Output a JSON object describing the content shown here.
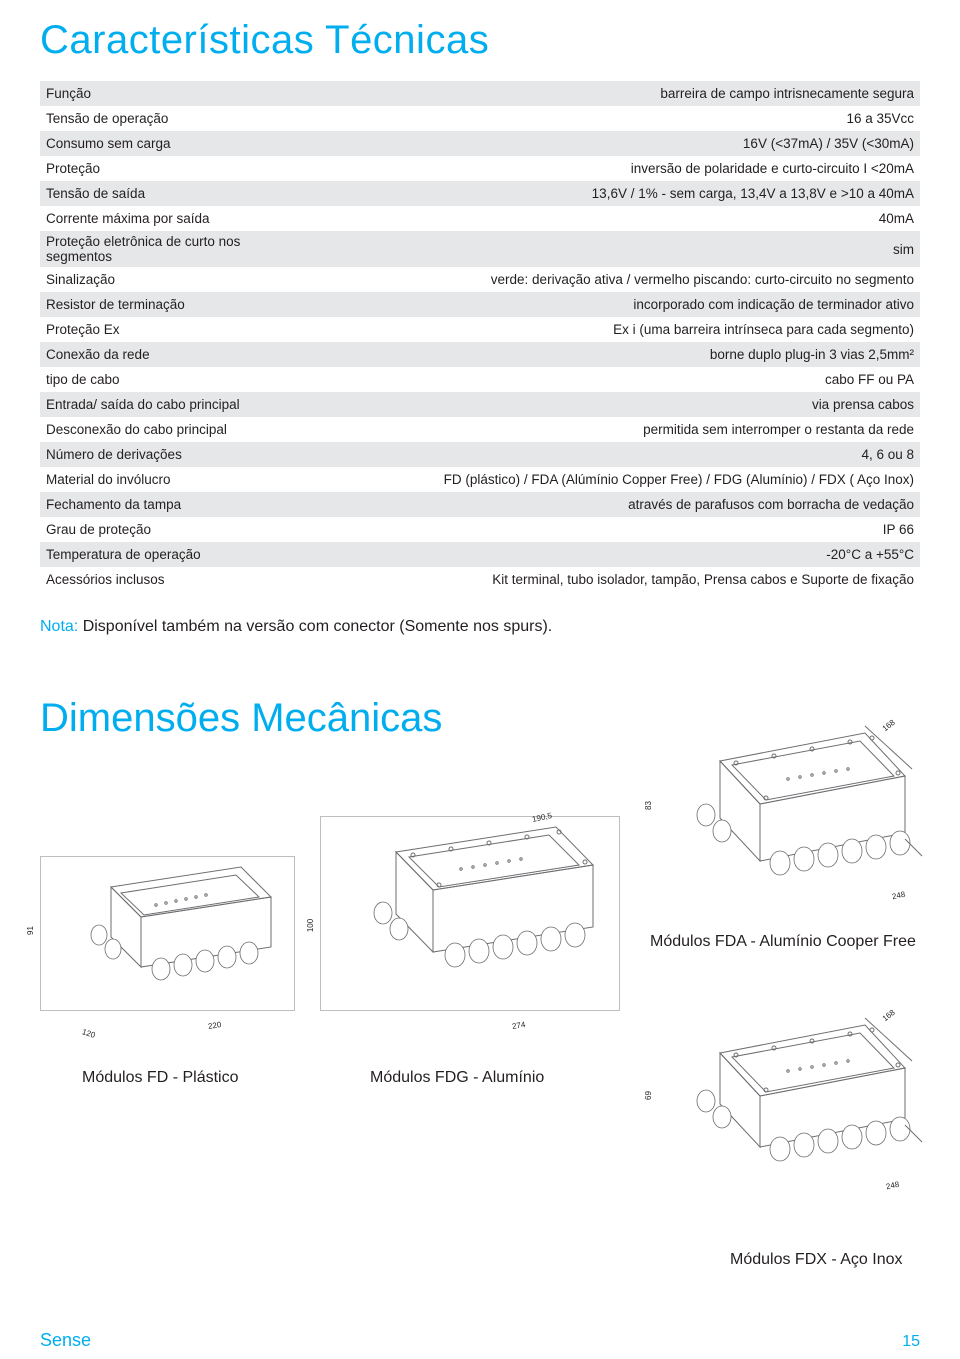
{
  "colors": {
    "accent": "#00aeef",
    "row_alt": "#e6e7e8",
    "text": "#231f20",
    "stroke": "#6d6e71",
    "border": "#bcbec0"
  },
  "section1_title": "Características Técnicas",
  "spec_rows": [
    {
      "k": "Função",
      "v": "barreira de campo intrisnecamente segura"
    },
    {
      "k": "Tensão de operação",
      "v": "16 a 35Vcc"
    },
    {
      "k": "Consumo sem carga",
      "v": "16V (<37mA) / 35V (<30mA)"
    },
    {
      "k": "Proteção",
      "v": "inversão de polaridade e curto-circuito I <20mA"
    },
    {
      "k": "Tensão de saída",
      "v": "13,6V / 1% - sem carga, 13,4V a 13,8V e >10 a 40mA"
    },
    {
      "k": "Corrente máxima por saída",
      "v": "40mA"
    },
    {
      "k": "Proteção eletrônica de curto nos segmentos",
      "v": "sim"
    },
    {
      "k": "Sinalização",
      "v": "verde: derivação ativa / vermelho piscando: curto-circuito no segmento"
    },
    {
      "k": "Resistor de terminação",
      "v": "incorporado com indicação de terminador ativo"
    },
    {
      "k": "Proteção Ex",
      "v": "Ex i (uma barreira intrínseca para cada segmento)"
    },
    {
      "k": "Conexão da rede",
      "v": "borne duplo plug-in 3 vias 2,5mm²"
    },
    {
      "k": "tipo de cabo",
      "v": "cabo FF ou PA"
    },
    {
      "k": "Entrada/ saída do cabo principal",
      "v": "via prensa cabos"
    },
    {
      "k": "Desconexão do cabo principal",
      "v": "permitida sem interromper o restanta da rede"
    },
    {
      "k": "Número de derivações",
      "v": "4, 6 ou 8"
    },
    {
      "k": "Material do invólucro",
      "v": "FD (plástico) / FDA (Alúmínio Copper Free) / FDG (Alumínio) / FDX ( Aço Inox)"
    },
    {
      "k": "Fechamento da tampa",
      "v": "através de parafusos com borracha de vedação"
    },
    {
      "k": "Grau de proteção",
      "v": "IP 66"
    },
    {
      "k": "Temperatura de operação",
      "v": "-20°C a +55°C"
    },
    {
      "k": "Acessórios inclusos",
      "v": "Kit terminal, tubo isolador, tampão, Prensa cabos e Suporte de fixação"
    }
  ],
  "note_label": "Nota:",
  "note_text": " Disponível também na versão com conector (Somente nos spurs).",
  "section2_title": "Dimensões Mecânicas",
  "drawings": {
    "fd": {
      "name": "Módulos FD - Plástico",
      "w": "220",
      "d": "120",
      "h": "91"
    },
    "fdg": {
      "name": "Módulos FDG - Alumínio",
      "w": "274",
      "d": "190,5",
      "h": "100"
    },
    "fda": {
      "name": "Módulos FDA - Alumínio Cooper Free",
      "w": "248",
      "d": "168",
      "h": "83"
    },
    "fdx": {
      "name": "Módulos FDX - Aço Inox",
      "w": "248",
      "d": "168",
      "h": "69"
    }
  },
  "footer": {
    "brand": "Sense",
    "page": "15"
  }
}
